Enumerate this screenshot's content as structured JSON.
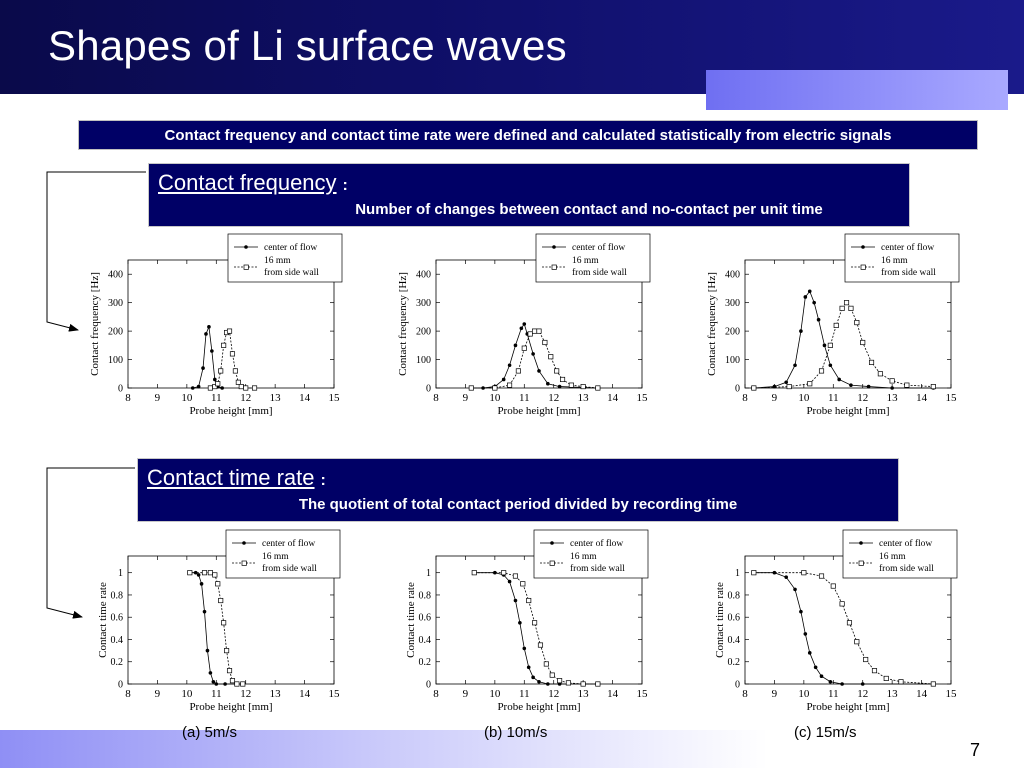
{
  "slide": {
    "title": "Shapes of Li surface waves",
    "banner": "Contact frequency and contact time rate were defined and calculated statistically from electric signals",
    "page_number": "7",
    "captions": [
      "(a) 5m/s",
      "(b) 10m/s",
      "(c) 15m/s"
    ]
  },
  "definitions": {
    "frequency": {
      "term": "Contact frequency",
      "colon": ":",
      "description": "Number of changes between contact and no-contact per unit time"
    },
    "time_rate": {
      "term": "Contact time rate",
      "colon": ":",
      "description": "The quotient of total contact period divided by recording time"
    }
  },
  "colors": {
    "header": "#0e0e66",
    "accent": "#8f8fff",
    "box": "#000066",
    "footer": "#a9a9f7"
  },
  "legend": {
    "series_a": "center of flow",
    "series_b_line1": "16 mm",
    "series_b_line2": "from side wall"
  },
  "chart_data": [
    {
      "type": "line",
      "panel": "frequency-5",
      "xlabel": "Probe height [mm]",
      "ylabel": "Contact frequency [Hz]",
      "xlim": [
        8,
        15
      ],
      "ylim": [
        0,
        450
      ],
      "xticks": [
        8,
        9,
        10,
        11,
        12,
        13,
        14,
        15
      ],
      "yticks": [
        0,
        100,
        200,
        300,
        400
      ],
      "series": [
        {
          "name": "center of flow",
          "x": [
            10.2,
            10.4,
            10.55,
            10.65,
            10.75,
            10.85,
            10.95,
            11.05,
            11.2
          ],
          "y": [
            0,
            5,
            70,
            190,
            215,
            130,
            30,
            5,
            0
          ]
        },
        {
          "name": "16 mm from side wall",
          "x": [
            10.8,
            10.95,
            11.05,
            11.15,
            11.25,
            11.35,
            11.45,
            11.55,
            11.65,
            11.75,
            11.85,
            12.0,
            12.3
          ],
          "y": [
            0,
            5,
            15,
            60,
            150,
            195,
            200,
            120,
            60,
            20,
            5,
            0,
            0
          ]
        }
      ]
    },
    {
      "type": "line",
      "panel": "frequency-10",
      "xlabel": "Probe height [mm]",
      "ylabel": "Contact frequency [Hz]",
      "xlim": [
        8,
        15
      ],
      "ylim": [
        0,
        450
      ],
      "xticks": [
        8,
        9,
        10,
        11,
        12,
        13,
        14,
        15
      ],
      "yticks": [
        0,
        100,
        200,
        300,
        400
      ],
      "series": [
        {
          "name": "center of flow",
          "x": [
            9.2,
            9.6,
            10.0,
            10.3,
            10.5,
            10.7,
            10.9,
            11.0,
            11.1,
            11.3,
            11.5,
            11.8,
            12.2,
            13.5
          ],
          "y": [
            0,
            0,
            5,
            30,
            80,
            150,
            210,
            225,
            190,
            120,
            60,
            15,
            5,
            0
          ]
        },
        {
          "name": "16 mm from side wall",
          "x": [
            9.2,
            10.0,
            10.5,
            10.8,
            11.0,
            11.2,
            11.35,
            11.5,
            11.7,
            11.9,
            12.1,
            12.3,
            12.6,
            13.0,
            13.5
          ],
          "y": [
            0,
            0,
            10,
            60,
            140,
            190,
            200,
            200,
            160,
            110,
            60,
            30,
            10,
            5,
            0
          ]
        }
      ]
    },
    {
      "type": "line",
      "panel": "frequency-15",
      "xlabel": "Probe height [mm]",
      "ylabel": "Contact frequency [Hz]",
      "xlim": [
        8,
        15
      ],
      "ylim": [
        0,
        450
      ],
      "xticks": [
        8,
        9,
        10,
        11,
        12,
        13,
        14,
        15
      ],
      "yticks": [
        0,
        100,
        200,
        300,
        400
      ],
      "series": [
        {
          "name": "center of flow",
          "x": [
            8.3,
            9.0,
            9.4,
            9.7,
            9.9,
            10.05,
            10.2,
            10.35,
            10.5,
            10.7,
            10.9,
            11.2,
            11.6,
            12.2,
            13.0,
            14.4
          ],
          "y": [
            0,
            5,
            20,
            80,
            200,
            320,
            340,
            300,
            240,
            150,
            80,
            30,
            10,
            5,
            0,
            0
          ]
        },
        {
          "name": "16 mm from side wall",
          "x": [
            8.3,
            9.5,
            10.2,
            10.6,
            10.9,
            11.1,
            11.3,
            11.45,
            11.6,
            11.8,
            12.0,
            12.3,
            12.6,
            13.0,
            13.5,
            14.4
          ],
          "y": [
            0,
            5,
            15,
            60,
            150,
            220,
            280,
            300,
            280,
            230,
            160,
            90,
            50,
            25,
            10,
            5
          ]
        }
      ]
    },
    {
      "type": "line",
      "panel": "timerate-5",
      "xlabel": "Probe height [mm]",
      "ylabel": "Contact time rate",
      "xlim": [
        8,
        15
      ],
      "ylim": [
        0,
        1.15
      ],
      "xticks": [
        8,
        9,
        10,
        11,
        12,
        13,
        14,
        15
      ],
      "yticks": [
        0,
        0.2,
        0.4,
        0.6,
        0.8,
        1
      ],
      "series": [
        {
          "name": "center of flow",
          "x": [
            10.1,
            10.3,
            10.4,
            10.5,
            10.6,
            10.7,
            10.8,
            10.9,
            11.0,
            11.3,
            11.9
          ],
          "y": [
            1,
            1,
            0.98,
            0.9,
            0.65,
            0.3,
            0.1,
            0.02,
            0,
            0,
            0
          ]
        },
        {
          "name": "16 mm from side wall",
          "x": [
            10.1,
            10.6,
            10.8,
            10.95,
            11.05,
            11.15,
            11.25,
            11.35,
            11.45,
            11.55,
            11.7,
            11.9
          ],
          "y": [
            1,
            1,
            1,
            0.98,
            0.9,
            0.75,
            0.55,
            0.3,
            0.12,
            0.03,
            0,
            0
          ]
        }
      ]
    },
    {
      "type": "line",
      "panel": "timerate-10",
      "xlabel": "Probe height [mm]",
      "ylabel": "Contact time rate",
      "xlim": [
        8,
        15
      ],
      "ylim": [
        0,
        1.15
      ],
      "xticks": [
        8,
        9,
        10,
        11,
        12,
        13,
        14,
        15
      ],
      "yticks": [
        0,
        0.2,
        0.4,
        0.6,
        0.8,
        1
      ],
      "series": [
        {
          "name": "center of flow",
          "x": [
            9.3,
            10.0,
            10.3,
            10.5,
            10.7,
            10.85,
            11.0,
            11.15,
            11.3,
            11.5,
            11.8,
            12.2,
            13.5
          ],
          "y": [
            1,
            1,
            0.98,
            0.92,
            0.75,
            0.55,
            0.32,
            0.15,
            0.06,
            0.02,
            0,
            0,
            0
          ]
        },
        {
          "name": "16 mm from side wall",
          "x": [
            9.3,
            10.3,
            10.7,
            10.95,
            11.15,
            11.35,
            11.55,
            11.75,
            11.95,
            12.2,
            12.5,
            13.0,
            13.5
          ],
          "y": [
            1,
            1,
            0.97,
            0.9,
            0.75,
            0.55,
            0.35,
            0.18,
            0.08,
            0.03,
            0.01,
            0,
            0
          ]
        }
      ]
    },
    {
      "type": "line",
      "panel": "timerate-15",
      "xlabel": "Probe height [mm]",
      "ylabel": "Contact time rate",
      "xlim": [
        8,
        15
      ],
      "ylim": [
        0,
        1.15
      ],
      "xticks": [
        8,
        9,
        10,
        11,
        12,
        13,
        14,
        15
      ],
      "yticks": [
        0,
        0.2,
        0.4,
        0.6,
        0.8,
        1
      ],
      "series": [
        {
          "name": "center of flow",
          "x": [
            8.3,
            9.0,
            9.4,
            9.7,
            9.9,
            10.05,
            10.2,
            10.4,
            10.6,
            10.9,
            11.3,
            12.0,
            14.4
          ],
          "y": [
            1,
            1,
            0.96,
            0.85,
            0.65,
            0.45,
            0.28,
            0.15,
            0.07,
            0.02,
            0,
            0,
            0
          ]
        },
        {
          "name": "16 mm from side wall",
          "x": [
            8.3,
            10.0,
            10.6,
            11.0,
            11.3,
            11.55,
            11.8,
            12.1,
            12.4,
            12.8,
            13.3,
            14.4
          ],
          "y": [
            1,
            1,
            0.97,
            0.88,
            0.72,
            0.55,
            0.38,
            0.22,
            0.12,
            0.05,
            0.02,
            0
          ]
        }
      ]
    }
  ]
}
